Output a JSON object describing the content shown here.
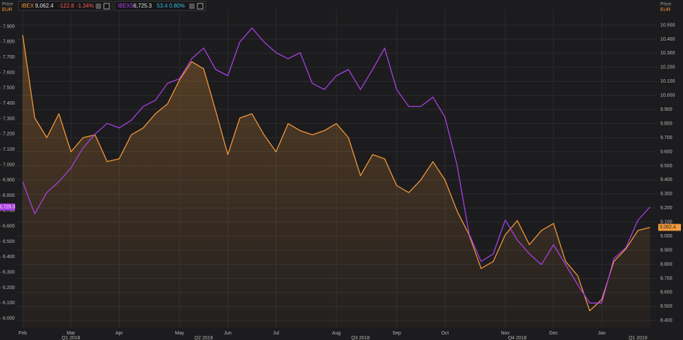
{
  "chart_data": {
    "type": "line",
    "ylabel": "Price",
    "yunit": "EUR",
    "y2label": "Price",
    "y2unit": "EUR",
    "grid": true,
    "categories": [
      "Feb",
      null,
      null,
      null,
      "Mar",
      null,
      null,
      null,
      "Apr",
      null,
      null,
      null,
      null,
      "May",
      null,
      null,
      null,
      "Jun",
      null,
      null,
      null,
      "Jul",
      null,
      null,
      null,
      null,
      "Aug",
      null,
      null,
      null,
      null,
      "Sep",
      null,
      null,
      null,
      "Oct",
      null,
      null,
      null,
      null,
      "Nov",
      null,
      null,
      null,
      "Dec",
      null,
      null,
      null,
      "Jan",
      null,
      null,
      null,
      null
    ],
    "quarters": [
      null,
      null,
      null,
      null,
      "Q1 2018",
      null,
      null,
      null,
      null,
      null,
      null,
      null,
      null,
      null,
      null,
      "Q2 2018",
      null,
      null,
      null,
      null,
      null,
      null,
      null,
      null,
      null,
      null,
      null,
      null,
      "Q3 2018",
      null,
      null,
      null,
      null,
      null,
      null,
      null,
      null,
      null,
      null,
      null,
      null,
      "Q4 2018",
      null,
      null,
      null,
      null,
      null,
      null,
      null,
      null,
      null,
      "Q1 2019",
      null
    ],
    "ylim": [
      5940,
      8010
    ],
    "yticks": [
      {
        "value": 6000,
        "label": "6.000"
      },
      {
        "value": 6100,
        "label": "6.100"
      },
      {
        "value": 6200,
        "label": "6.200"
      },
      {
        "value": 6300,
        "label": "6.300"
      },
      {
        "value": 6400,
        "label": "6.400"
      },
      {
        "value": 6500,
        "label": "6.500"
      },
      {
        "value": 6600,
        "label": "6.600"
      },
      {
        "value": 6700,
        "label": "6.700"
      },
      {
        "value": 6800,
        "label": "6.800"
      },
      {
        "value": 6900,
        "label": "6.900"
      },
      {
        "value": 7000,
        "label": "7.000"
      },
      {
        "value": 7100,
        "label": "7.100"
      },
      {
        "value": 7200,
        "label": "7.200"
      },
      {
        "value": 7300,
        "label": "7.300"
      },
      {
        "value": 7400,
        "label": "7.400"
      },
      {
        "value": 7500,
        "label": "7.500"
      },
      {
        "value": 7600,
        "label": "7.600"
      },
      {
        "value": 7700,
        "label": "7.700"
      },
      {
        "value": 7800,
        "label": "7.800"
      },
      {
        "value": 7900,
        "label": "7.900"
      }
    ],
    "y2lim": [
      8350,
      10610
    ],
    "y2ticks": [
      {
        "value": 8400,
        "label": "8.400"
      },
      {
        "value": 8500,
        "label": "8.500"
      },
      {
        "value": 8600,
        "label": "8.600"
      },
      {
        "value": 8700,
        "label": "8.700"
      },
      {
        "value": 8800,
        "label": "8.800"
      },
      {
        "value": 8900,
        "label": "8.900"
      },
      {
        "value": 9000,
        "label": "9.000"
      },
      {
        "value": 9100,
        "label": "9.100"
      },
      {
        "value": 9200,
        "label": "9.200"
      },
      {
        "value": 9300,
        "label": "9.300"
      },
      {
        "value": 9400,
        "label": "9.400"
      },
      {
        "value": 9500,
        "label": "9.500"
      },
      {
        "value": 9600,
        "label": "9.600"
      },
      {
        "value": 9700,
        "label": "9.700"
      },
      {
        "value": 9800,
        "label": "9.800"
      },
      {
        "value": 9900,
        "label": "9.900"
      },
      {
        "value": 10000,
        "label": "10.000"
      },
      {
        "value": 10100,
        "label": "10.100"
      },
      {
        "value": 10200,
        "label": "10.200"
      },
      {
        "value": 10300,
        "label": "10.300"
      },
      {
        "value": 10400,
        "label": "10.400"
      },
      {
        "value": 10500,
        "label": "10.500"
      }
    ],
    "series": [
      {
        "name": "IBEX",
        "color": "#f59a3a",
        "axis": "y2",
        "area": true,
        "last": "9,062.4",
        "change": "-122.8",
        "change_pct": "-1.34%",
        "change_color": "#ff5a5a",
        "values": [
          10430,
          9840,
          9700,
          9870,
          9600,
          9700,
          9720,
          9530,
          9550,
          9720,
          9770,
          9870,
          9940,
          10110,
          10240,
          10190,
          9890,
          9580,
          9840,
          9870,
          9720,
          9600,
          9800,
          9750,
          9720,
          9750,
          9800,
          9700,
          9430,
          9580,
          9550,
          9360,
          9310,
          9400,
          9530,
          9400,
          9180,
          9010,
          8770,
          8820,
          9010,
          9110,
          8940,
          9040,
          9090,
          8820,
          8720,
          8470,
          8550,
          8820,
          8910,
          9040,
          9062.4
        ]
      },
      {
        "name": "IBEXS",
        "color": "#ac3fe6",
        "axis": "y",
        "area": false,
        "last": "6,725.3",
        "change": "53.4",
        "change_pct": "0.80%",
        "change_color": "#36c2e6",
        "values": [
          6890,
          6680,
          6820,
          6890,
          6980,
          7110,
          7200,
          7270,
          7240,
          7290,
          7380,
          7420,
          7530,
          7560,
          7690,
          7760,
          7620,
          7580,
          7800,
          7890,
          7800,
          7730,
          7690,
          7730,
          7530,
          7490,
          7580,
          7620,
          7490,
          7620,
          7760,
          7490,
          7380,
          7380,
          7440,
          7310,
          7000,
          6550,
          6370,
          6420,
          6640,
          6510,
          6420,
          6350,
          6480,
          6350,
          6220,
          6100,
          6100,
          6390,
          6460,
          6640,
          6725.3
        ]
      }
    ]
  }
}
